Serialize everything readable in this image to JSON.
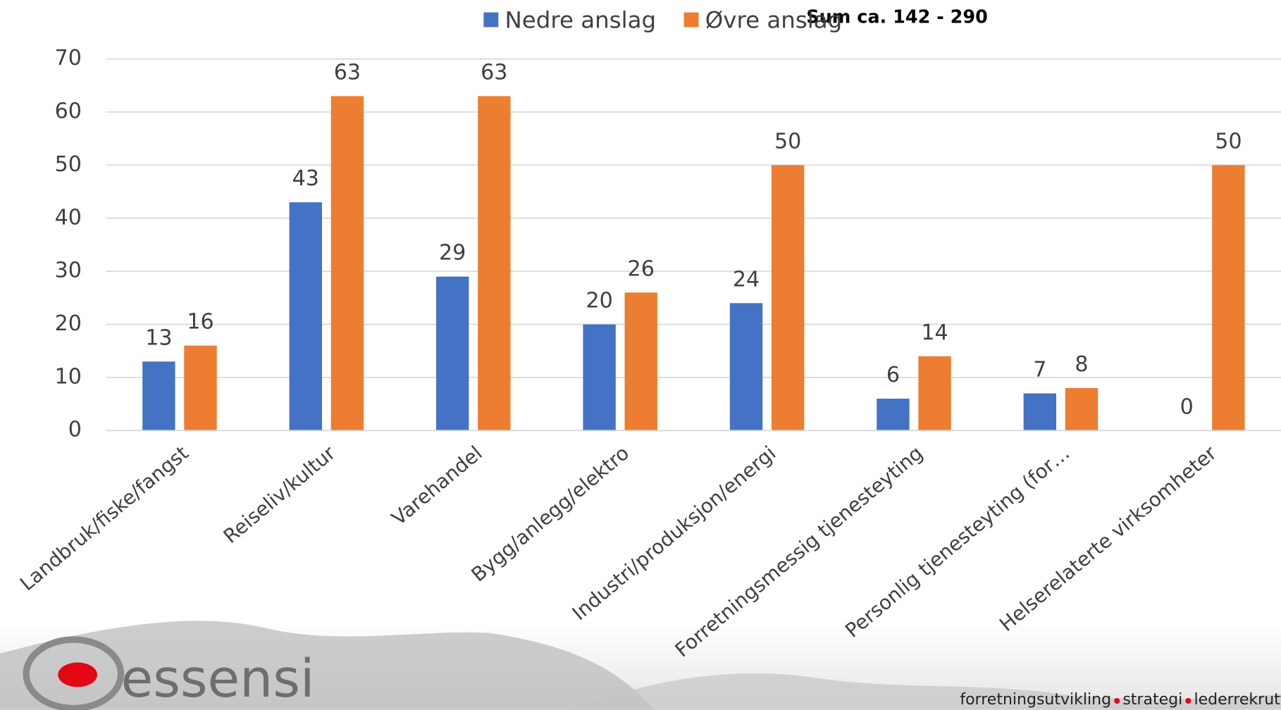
{
  "chart_data": {
    "type": "bar",
    "annotation": "Sum ca. 142  -  290",
    "categories": [
      "Landbruk/fiske/fangst",
      "Reiseliv/kultur",
      "Varehandel",
      "Bygg/anlegg/elektro",
      "Industri/produksjon/energi",
      "Forretningsmessig tjenesteyting",
      "Personlig tjenesteyting (for…",
      "Helserelaterte virksomheter"
    ],
    "series": [
      {
        "name": "Nedre anslag",
        "color": "#4472c4",
        "values": [
          13,
          43,
          29,
          20,
          24,
          6,
          7,
          0
        ]
      },
      {
        "name": "Øvre anslag",
        "color": "#ed7d31",
        "values": [
          16,
          63,
          63,
          26,
          50,
          14,
          8,
          50
        ]
      }
    ],
    "ylim": [
      0,
      70
    ],
    "yticks": [
      0,
      10,
      20,
      30,
      40,
      50,
      60,
      70
    ],
    "grid": true
  },
  "footer": {
    "logo": "essensi",
    "tagline": [
      "forretningsutvikling",
      "strategi",
      "lederrekruttering"
    ]
  }
}
